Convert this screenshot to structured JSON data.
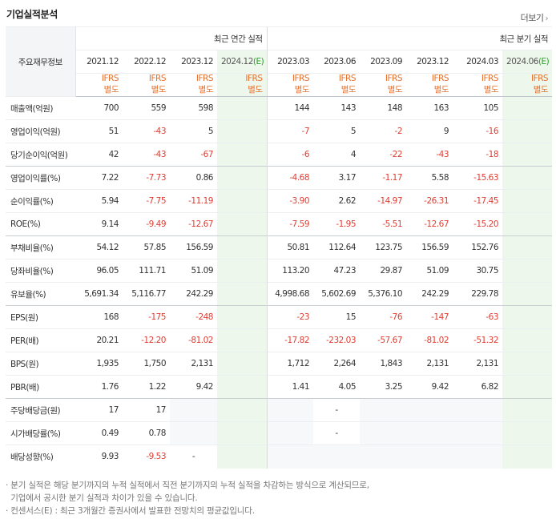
{
  "title": "기업실적분석",
  "more_label": "더보기",
  "more_arrow": "›",
  "headers": {
    "key_label": "주요재무정보",
    "annual_label": "최근 연간 실적",
    "quarter_label": "최근 분기 실적",
    "annual_periods": [
      "2021.12",
      "2022.12",
      "2023.12",
      "2024.12"
    ],
    "quarter_periods": [
      "2023.03",
      "2023.06",
      "2023.09",
      "2023.12",
      "2024.03",
      "2024.06"
    ],
    "estimate_suffix": "(E)",
    "ifrs_top": "IFRS",
    "ifrs_bottom": "별도"
  },
  "rows": [
    {
      "label": "매출액(억원)",
      "annual": [
        "700",
        "559",
        "598",
        ""
      ],
      "quarter": [
        "144",
        "143",
        "148",
        "163",
        "105",
        ""
      ]
    },
    {
      "label": "영업이익(억원)",
      "annual": [
        "51",
        "-43",
        "5",
        ""
      ],
      "quarter": [
        "-7",
        "5",
        "-2",
        "9",
        "-16",
        ""
      ]
    },
    {
      "label": "당기순이익(억원)",
      "annual": [
        "42",
        "-43",
        "-67",
        ""
      ],
      "quarter": [
        "-6",
        "4",
        "-22",
        "-43",
        "-18",
        ""
      ]
    },
    {
      "label": "영업이익률(%)",
      "annual": [
        "7.22",
        "-7.73",
        "0.86",
        ""
      ],
      "quarter": [
        "-4.68",
        "3.17",
        "-1.17",
        "5.58",
        "-15.63",
        ""
      ]
    },
    {
      "label": "순이익률(%)",
      "annual": [
        "5.94",
        "-7.75",
        "-11.19",
        ""
      ],
      "quarter": [
        "-3.90",
        "2.62",
        "-14.97",
        "-26.31",
        "-17.45",
        ""
      ]
    },
    {
      "label": "ROE(%)",
      "annual": [
        "9.14",
        "-9.49",
        "-12.67",
        ""
      ],
      "quarter": [
        "-7.59",
        "-1.95",
        "-5.51",
        "-12.67",
        "-15.20",
        ""
      ]
    },
    {
      "label": "부채비율(%)",
      "annual": [
        "54.12",
        "57.85",
        "156.59",
        ""
      ],
      "quarter": [
        "50.81",
        "112.64",
        "123.75",
        "156.59",
        "152.76",
        ""
      ]
    },
    {
      "label": "당좌비율(%)",
      "annual": [
        "96.05",
        "111.71",
        "51.09",
        ""
      ],
      "quarter": [
        "113.20",
        "47.23",
        "29.87",
        "51.09",
        "30.75",
        ""
      ]
    },
    {
      "label": "유보율(%)",
      "annual": [
        "5,691.34",
        "5,116.77",
        "242.29",
        ""
      ],
      "quarter": [
        "4,998.68",
        "5,602.69",
        "5,376.10",
        "242.29",
        "229.78",
        ""
      ]
    },
    {
      "label": "EPS(원)",
      "annual": [
        "168",
        "-175",
        "-248",
        ""
      ],
      "quarter": [
        "-23",
        "15",
        "-76",
        "-147",
        "-63",
        ""
      ]
    },
    {
      "label": "PER(배)",
      "annual": [
        "20.21",
        "-12.20",
        "-81.02",
        ""
      ],
      "quarter": [
        "-17.82",
        "-232.03",
        "-57.67",
        "-81.02",
        "-51.32",
        ""
      ]
    },
    {
      "label": "BPS(원)",
      "annual": [
        "1,935",
        "1,750",
        "2,131",
        ""
      ],
      "quarter": [
        "1,712",
        "2,264",
        "1,843",
        "2,131",
        "2,131",
        ""
      ]
    },
    {
      "label": "PBR(배)",
      "annual": [
        "1.76",
        "1.22",
        "9.42",
        ""
      ],
      "quarter": [
        "1.41",
        "4.05",
        "3.25",
        "9.42",
        "6.82",
        ""
      ]
    },
    {
      "label": "주당배당금(원)",
      "annual": [
        "17",
        "17",
        "",
        ""
      ],
      "quarter": [
        "",
        "-",
        "",
        "",
        "",
        ""
      ]
    },
    {
      "label": "시가배당률(%)",
      "annual": [
        "0.49",
        "0.78",
        "",
        ""
      ],
      "quarter": [
        "",
        "-",
        "",
        "",
        "",
        ""
      ]
    },
    {
      "label": "배당성향(%)",
      "annual": [
        "9.93",
        "-9.53",
        "-",
        ""
      ],
      "quarter": [
        "",
        "",
        "",
        "",
        "",
        ""
      ]
    }
  ],
  "notes": [
    "· 분기 실적은 해당 분기까지의 누적 실적에서 직전 분기까지의 누적 실적을 차감하는 방식으로 계산되므로,",
    "  기업에서 공시한 분기 실적과 차이가 있을 수 있습니다.",
    "· 컨센서스(E) : 최근 3개월간 증권사에서 발표한 전망치의 평균값입니다."
  ],
  "colors": {
    "negative": "#e03c31",
    "ifrs": "#e8702a",
    "estimate_bg": "#eef7ec",
    "estimate_mark": "#2aa02a"
  }
}
